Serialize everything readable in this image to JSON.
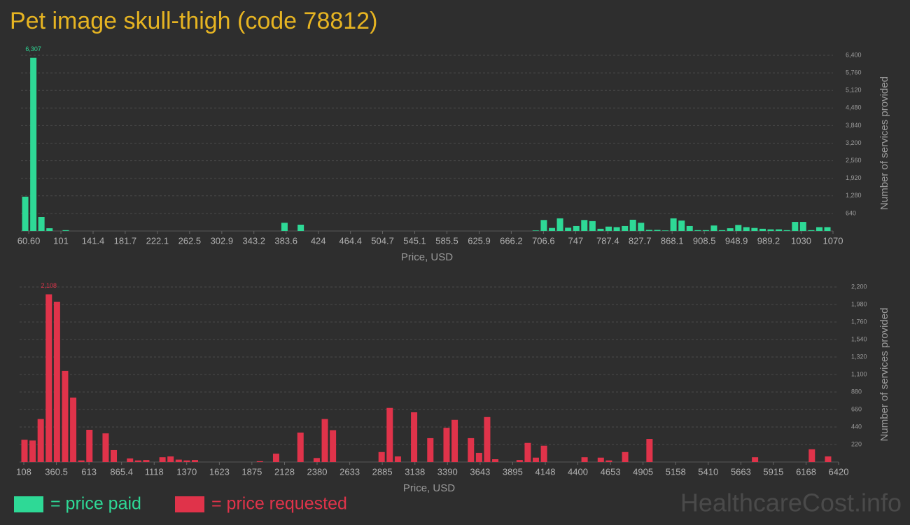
{
  "title": "Pet image skull-thigh (code 78812)",
  "watermark": "HealthcareCost.info",
  "chart_data": [
    {
      "type": "bar",
      "xlabel": "Price, USD",
      "ylabel": "Number of services provided",
      "xlim": [
        50.9,
        1070
      ],
      "ylim": [
        0,
        6400
      ],
      "xticks": [
        {
          "value": 60.6,
          "label": "60.60"
        },
        101,
        141.4,
        181.7,
        222.1,
        262.5,
        302.9,
        343.2,
        383.6,
        424,
        464.4,
        504.7,
        545.1,
        585.5,
        625.9,
        666.2,
        706.6,
        747,
        787.4,
        827.7,
        868.1,
        908.5,
        948.9,
        989.2,
        1030,
        1070
      ],
      "yticks": [
        640,
        {
          "value": 1280,
          "label": "1,280"
        },
        {
          "value": 1920,
          "label": "1,920"
        },
        {
          "value": 2560,
          "label": "2,560"
        },
        {
          "value": 3200,
          "label": "3,200"
        },
        {
          "value": 3840,
          "label": "3,840"
        },
        {
          "value": 4480,
          "label": "4,480"
        },
        {
          "value": 5120,
          "label": "5,120"
        },
        {
          "value": 5760,
          "label": "5,760"
        },
        {
          "value": 6400,
          "label": "6,400"
        }
      ],
      "grid": true,
      "x": [
        56.2,
        66.4,
        76.5,
        86.7,
        107.1,
        381.6,
        402.0,
        696.9,
        707.1,
        717.3,
        727.4,
        737.6,
        747.8,
        757.9,
        768.1,
        778.3,
        788.4,
        798.6,
        808.8,
        818.9,
        829.1,
        839.3,
        849.5,
        859.6,
        869.8,
        880.0,
        890.1,
        900.3,
        910.5,
        920.6,
        930.8,
        941.0,
        951.2,
        961.3,
        971.5,
        981.7,
        991.8,
        1002.0,
        1012.2,
        1022.4,
        1032.5,
        1042.7,
        1052.9,
        1063.0
      ],
      "series": [
        {
          "name": "= price paid",
          "color": "#2ed996",
          "values": [
            1250,
            6307,
            510,
            100,
            30,
            300,
            230,
            20,
            400,
            110,
            460,
            120,
            180,
            400,
            360,
            80,
            160,
            140,
            180,
            410,
            300,
            40,
            40,
            20,
            460,
            380,
            180,
            30,
            30,
            200,
            30,
            100,
            220,
            140,
            110,
            80,
            60,
            60,
            30,
            330,
            330,
            30,
            140,
            140
          ],
          "value_labels": [
            null,
            "6,307",
            null,
            null,
            null,
            null,
            null,
            null,
            null,
            null,
            null,
            null,
            null,
            null,
            null,
            null,
            null,
            null,
            null,
            null,
            null,
            null,
            null,
            null,
            null,
            null,
            null,
            null,
            null,
            null,
            null,
            null,
            null,
            null,
            null,
            null,
            null,
            null,
            null,
            null,
            null,
            null,
            null,
            null
          ]
        }
      ]
    },
    {
      "type": "bar",
      "xlabel": "Price, USD",
      "ylabel": "Number of services provided",
      "xlim": [
        75.5,
        6420
      ],
      "ylim": [
        0,
        2200
      ],
      "xticks": [
        108,
        360.5,
        613,
        865.4,
        1118,
        1370,
        1623,
        1875,
        2128,
        2380,
        2633,
        2885,
        3138,
        3390,
        3643,
        3895,
        4148,
        4400,
        4653,
        4905,
        5158,
        5410,
        5663,
        5915,
        6168,
        6420
      ],
      "yticks": [
        220,
        440,
        660,
        880,
        {
          "value": 1100,
          "label": "1,100"
        },
        {
          "value": 1320,
          "label": "1,320"
        },
        {
          "value": 1540,
          "label": "1,540"
        },
        {
          "value": 1760,
          "label": "1,760"
        },
        {
          "value": 1980,
          "label": "1,980"
        },
        {
          "value": 2200,
          "label": "2,200"
        }
      ],
      "grid": true,
      "x": [
        113.4,
        176.3,
        239.2,
        302.0,
        364.9,
        427.8,
        490.7,
        553.6,
        616.4,
        742.2,
        805.1,
        930.8,
        993.7,
        1056.6,
        1182.4,
        1245.2,
        1308.1,
        1371.0,
        1433.9,
        1937.0,
        2062.7,
        2251.3,
        2377.1,
        2440.0,
        2502.8,
        2880.1,
        2943.0,
        3005.9,
        3131.6,
        3257.4,
        3383.2,
        3446.0,
        3571.8,
        3634.7,
        3697.6,
        3760.4,
        3949.1,
        4012.0,
        4074.8,
        4137.7,
        4452.1,
        4577.9,
        4640.8,
        4766.5,
        4955.2,
        5772.6,
        6212.8,
        6338.5
      ],
      "series": [
        {
          "name": "= price requested",
          "color": "#e0334a",
          "values": [
            280,
            270,
            540,
            2108,
            2015,
            1145,
            810,
            20,
            405,
            360,
            150,
            45,
            20,
            25,
            60,
            70,
            30,
            20,
            25,
            10,
            105,
            370,
            50,
            540,
            400,
            125,
            680,
            70,
            625,
            300,
            430,
            530,
            300,
            115,
            565,
            35,
            25,
            240,
            55,
            205,
            60,
            55,
            20,
            125,
            290,
            60,
            160,
            70
          ],
          "value_labels": [
            null,
            null,
            null,
            "2,108",
            null,
            null,
            null,
            null,
            null,
            null,
            null,
            null,
            null,
            null,
            null,
            null,
            null,
            null,
            null,
            null,
            null,
            null,
            null,
            null,
            null,
            null,
            null,
            null,
            null,
            null,
            null,
            null,
            null,
            null,
            null,
            null,
            null,
            null,
            null,
            null,
            null,
            null,
            null,
            null,
            null,
            null,
            null,
            null
          ]
        }
      ]
    }
  ]
}
